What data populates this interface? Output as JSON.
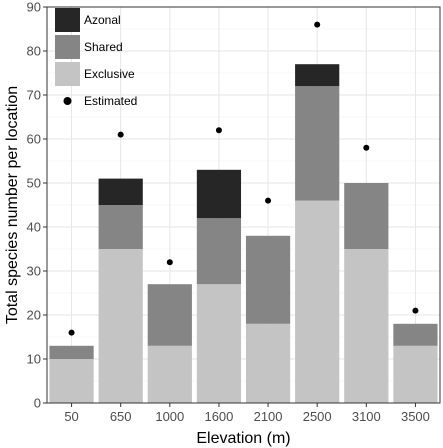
{
  "chart_data": {
    "type": "bar",
    "stacked": true,
    "categories": [
      "50",
      "650",
      "1000",
      "1600",
      "2100",
      "2500",
      "3100",
      "3500"
    ],
    "series": [
      {
        "name": "Exclusive",
        "values": [
          10,
          35,
          13,
          27,
          18,
          46,
          35,
          13
        ],
        "color": "#c4c4c4"
      },
      {
        "name": "Shared",
        "values": [
          3,
          10,
          14,
          15,
          20,
          26,
          15,
          5
        ],
        "color": "#858585"
      },
      {
        "name": "Azonal",
        "values": [
          0,
          6,
          0,
          11,
          0,
          5,
          0,
          0
        ],
        "color": "#262626"
      }
    ],
    "estimated": {
      "name": "Estimated",
      "values": [
        16,
        61,
        32,
        62,
        46,
        86,
        58,
        21
      ],
      "color": "#000000"
    },
    "xlabel": "Elevation (m)",
    "ylabel": "Total species number per location",
    "ylim": [
      0,
      90
    ],
    "yticks": [
      0,
      10,
      20,
      30,
      40,
      50,
      60,
      70,
      80,
      90
    ],
    "grid": true,
    "legend_position": "top-left",
    "legend_order": [
      "Azonal",
      "Shared",
      "Exclusive",
      "Estimated"
    ]
  }
}
